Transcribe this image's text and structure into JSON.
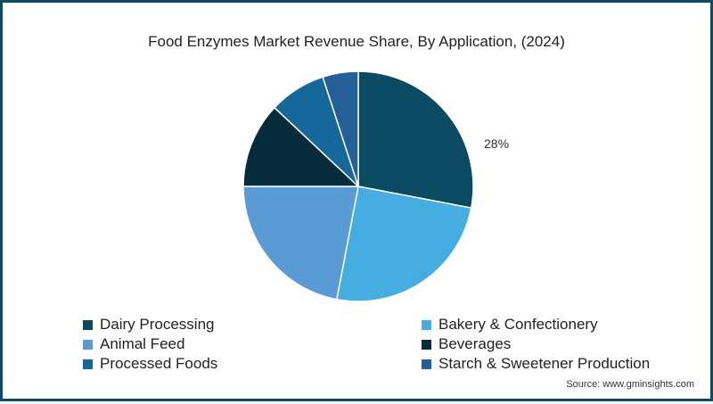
{
  "chart": {
    "title": "Food Enzymes Market Revenue Share, By Application, (2024)",
    "source": "Source: www.gminsights.com",
    "visible_label": "28%"
  },
  "legend": [
    {
      "label": "Dairy Processing",
      "color": "#0b4a63"
    },
    {
      "label": "Bakery & Confectionery",
      "color": "#45ade0"
    },
    {
      "label": "Animal Feed",
      "color": "#5a9bd5"
    },
    {
      "label": "Beverages",
      "color": "#062b3b"
    },
    {
      "label": "Processed Foods",
      "color": "#16679a"
    },
    {
      "label": "Starch & Sweetener Production",
      "color": "#245f98"
    }
  ],
  "chart_data": {
    "type": "pie",
    "title": "Food Enzymes Market Revenue Share, By Application, (2024)",
    "categories": [
      "Dairy Processing",
      "Bakery & Confectionery",
      "Animal Feed",
      "Beverages",
      "Processed Foods",
      "Starch & Sweetener Production"
    ],
    "values": [
      28,
      25,
      22,
      12,
      8,
      5
    ],
    "unit": "%",
    "data_labels": {
      "Dairy Processing": "28%"
    },
    "colors": [
      "#0b4a63",
      "#45ade0",
      "#5a9bd5",
      "#062b3b",
      "#16679a",
      "#245f98"
    ],
    "legend_position": "bottom",
    "start_angle": "12 o'clock, clockwise",
    "source": "Source: www.gminsights.com"
  }
}
